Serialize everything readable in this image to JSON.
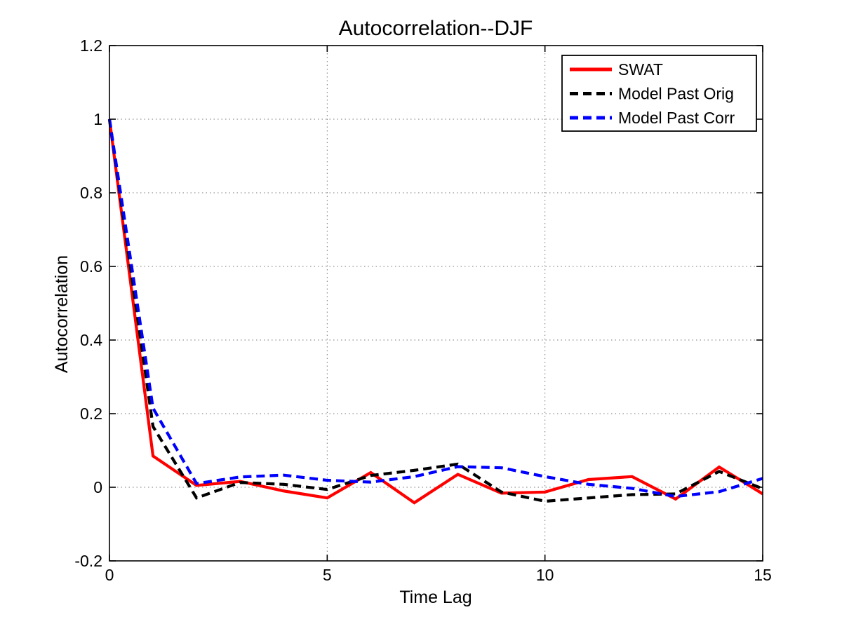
{
  "title": "Autocorrelation--DJF",
  "colors": {
    "background": "#ffffff",
    "axis": "#000000",
    "grid": "#777777",
    "swat": "#ff0000",
    "model_past_orig": "#000000",
    "model_past_corr": "#0000ff"
  },
  "chart_data": {
    "type": "line",
    "title": "Autocorrelation--DJF",
    "xlabel": "Time Lag",
    "ylabel": "Autocorrelation",
    "xlim": [
      0,
      15
    ],
    "ylim": [
      -0.2,
      1.2
    ],
    "xticks": [
      0,
      5,
      10,
      15
    ],
    "yticks": [
      -0.2,
      0,
      0.2,
      0.4,
      0.6,
      0.8,
      1,
      1.2
    ],
    "xtick_labels": [
      "0",
      "5",
      "10",
      "15"
    ],
    "ytick_labels": [
      "-0.2",
      "0",
      "0.2",
      "0.4",
      "0.6",
      "0.8",
      "1",
      "1.2"
    ],
    "grid": true,
    "grid_style": "dotted",
    "legend_position": "top-right",
    "x": [
      0,
      1,
      2,
      3,
      4,
      5,
      6,
      7,
      8,
      9,
      10,
      11,
      12,
      13,
      14,
      15
    ],
    "series": [
      {
        "name": "SWAT",
        "color": "#ff0000",
        "style": "solid",
        "values": [
          1.0,
          0.085,
          0.005,
          0.016,
          -0.01,
          -0.029,
          0.04,
          -0.042,
          0.035,
          -0.016,
          -0.013,
          0.021,
          0.029,
          -0.032,
          0.055,
          -0.018
        ]
      },
      {
        "name": "Model Past Orig",
        "color": "#000000",
        "style": "dashed",
        "values": [
          1.0,
          0.165,
          -0.029,
          0.013,
          0.008,
          -0.006,
          0.032,
          0.046,
          0.063,
          -0.013,
          -0.038,
          -0.029,
          -0.02,
          -0.018,
          0.043,
          -0.004
        ]
      },
      {
        "name": "Model Past Corr",
        "color": "#0000ff",
        "style": "dashed",
        "values": [
          1.0,
          0.215,
          0.01,
          0.028,
          0.033,
          0.019,
          0.014,
          0.029,
          0.056,
          0.053,
          0.029,
          0.008,
          -0.003,
          -0.025,
          -0.012,
          0.024
        ]
      }
    ]
  }
}
